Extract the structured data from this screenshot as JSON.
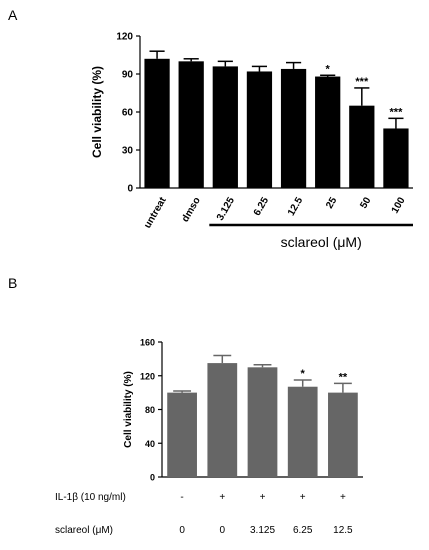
{
  "chart_data": [
    {
      "panel": "A",
      "type": "bar",
      "categories": [
        "untreat",
        "dmso",
        "3.125",
        "6.25",
        "12.5",
        "25",
        "50",
        "100"
      ],
      "values": [
        102,
        100,
        96,
        92,
        94,
        88,
        65,
        47
      ],
      "errors": [
        6,
        2,
        4,
        4,
        5,
        1,
        14,
        8
      ],
      "significance": [
        "",
        "",
        "",
        "",
        "",
        "*",
        "***",
        "***"
      ],
      "ylabel": "Cell viability (%)",
      "ylim": [
        0,
        120
      ],
      "yticks": [
        0,
        30,
        60,
        90,
        120
      ],
      "group_label": "sclareol (μM)",
      "bar_color": "#000000"
    },
    {
      "panel": "B",
      "type": "bar",
      "categories": [
        "0",
        "0",
        "3.125",
        "6.25",
        "12.5"
      ],
      "values": [
        100,
        135,
        130,
        107,
        100
      ],
      "errors": [
        2,
        9,
        3,
        8,
        11
      ],
      "significance": [
        "",
        "",
        "",
        "*",
        "**"
      ],
      "ylabel": "Cell viability (%)",
      "ylim": [
        0,
        160
      ],
      "yticks": [
        0,
        40,
        80,
        120,
        160
      ],
      "row1_label": "IL-1β (10 ng/ml)",
      "row1_values": [
        "-",
        "+",
        "+",
        "+",
        "+"
      ],
      "row2_label": "sclareol (μM)",
      "row2_values": [
        "0",
        "0",
        "3.125",
        "6.25",
        "12.5"
      ],
      "bar_color": "#666666"
    }
  ]
}
